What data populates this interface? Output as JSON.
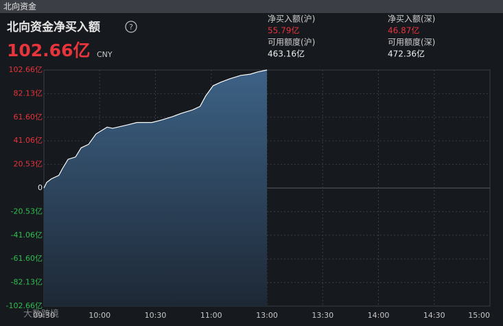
{
  "window_title": "北向资金",
  "panel_title": "北向资金净买入额",
  "total": "102.66亿",
  "currency": "CNY",
  "stats": [
    {
      "label": "净买入额(沪)",
      "value": "55.79亿"
    },
    {
      "label": "净买入额(深)",
      "value": "46.87亿"
    },
    {
      "label": "可用额度(沪)",
      "value": "463.16亿"
    },
    {
      "label": "可用额度(深)",
      "value": "472.36亿"
    }
  ],
  "watermark": "大数跨境",
  "chart_data": {
    "type": "area",
    "x": [
      0,
      1.5,
      4,
      8,
      10,
      13,
      17,
      20,
      24,
      28,
      34,
      37,
      45,
      50,
      58,
      63,
      69,
      74,
      80,
      84,
      87,
      91,
      95,
      100,
      106,
      111,
      115,
      120
    ],
    "values": [
      0,
      5,
      8,
      11,
      17,
      25,
      27,
      35,
      38,
      47,
      53,
      52,
      55,
      57,
      57,
      59,
      62,
      65,
      68,
      71,
      80,
      89,
      92,
      95,
      98,
      99,
      101,
      102.66
    ],
    "color": "#ffffff",
    "fill": "#3d6286",
    "xlim": [
      0,
      240
    ],
    "xticks": [
      {
        "value": 0,
        "label": "09:30"
      },
      {
        "value": 30,
        "label": "10:00"
      },
      {
        "value": 60,
        "label": "10:30"
      },
      {
        "value": 90,
        "label": "11:00"
      },
      {
        "value": 120,
        "label": "13:00"
      },
      {
        "value": 150,
        "label": "13:30"
      },
      {
        "value": 180,
        "label": "14:00"
      },
      {
        "value": 210,
        "label": "14:30"
      },
      {
        "value": 240,
        "label": "15:00"
      }
    ],
    "ylim": [
      -102.66,
      102.66
    ],
    "yticks": [
      {
        "value": 102.66,
        "label": "102.66亿"
      },
      {
        "value": 82.13,
        "label": "82.13亿"
      },
      {
        "value": 61.6,
        "label": "61.60亿"
      },
      {
        "value": 41.06,
        "label": "41.06亿"
      },
      {
        "value": 20.53,
        "label": "20.53亿"
      },
      0,
      {
        "value": -20.53,
        "label": "-20.53亿"
      },
      {
        "value": -41.06,
        "label": "-41.06亿"
      },
      {
        "value": -61.6,
        "label": "-61.60亿"
      },
      {
        "value": -82.13,
        "label": "-82.13亿"
      },
      {
        "value": -102.66,
        "label": "-102.66亿"
      }
    ],
    "grid": true
  }
}
